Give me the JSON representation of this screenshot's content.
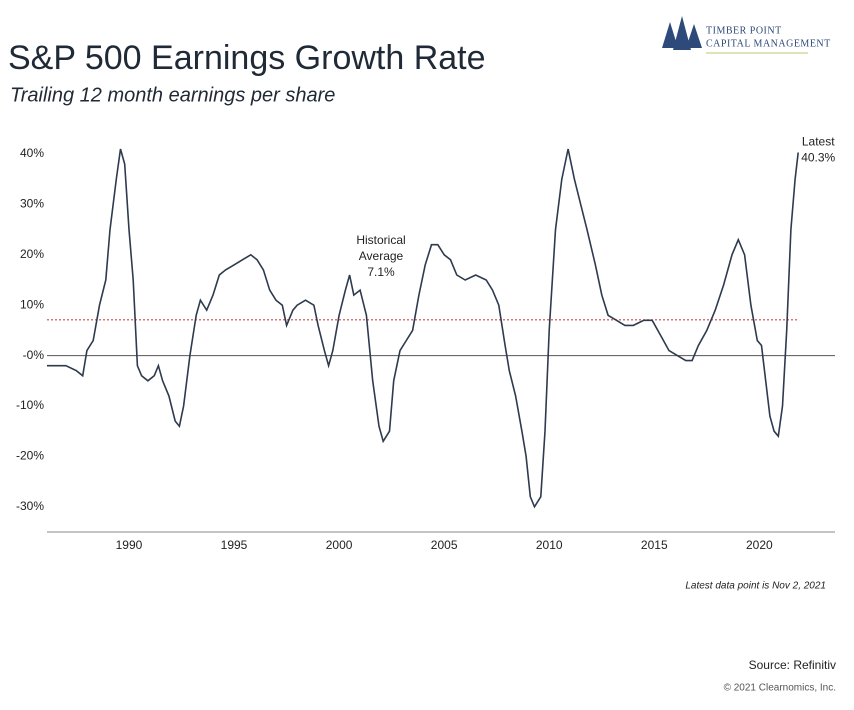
{
  "logo": {
    "line1": "Timber Point",
    "line2": "Capital Management"
  },
  "chart_data": {
    "type": "line",
    "title": "S&P 500 Earnings Growth Rate",
    "subtitle": "Trailing 12 month earnings per share",
    "note": "Latest data point is Nov 2, 2021",
    "source": "Source: Refinitiv",
    "copyright": "© 2021 Clearnomics, Inc.",
    "xlim": [
      1986.1,
      2023.6
    ],
    "xticks": [
      1990,
      1995,
      2000,
      2005,
      2010,
      2015,
      2020
    ],
    "ylim": [
      -35,
      45
    ],
    "yticks": [
      {
        "value": 40,
        "label": "40%"
      },
      {
        "value": 30,
        "label": "30%"
      },
      {
        "value": 20,
        "label": "20%"
      },
      {
        "value": 10,
        "label": "10%"
      },
      {
        "value": 0,
        "label": "-0%"
      },
      {
        "value": -10,
        "label": "-10%"
      },
      {
        "value": -20,
        "label": "-20%"
      },
      {
        "value": -30,
        "label": "-30%"
      }
    ],
    "grid": false,
    "zero_line": true,
    "average": {
      "lines": [
        "Historical",
        "Average"
      ],
      "value": 7.1,
      "value_label": "7.1%",
      "color": "#d04545"
    },
    "latest": {
      "label": "Latest",
      "value": 40.3,
      "value_label": "40.3%"
    },
    "series": [
      {
        "name": "S&P 500 Earnings Growth Rate",
        "color": "#2e3a4d",
        "x": [
          1986.1,
          1987.0,
          1987.5,
          1987.8,
          1988.0,
          1988.3,
          1988.6,
          1988.9,
          1989.1,
          1989.4,
          1989.6,
          1989.8,
          1990.0,
          1990.2,
          1990.4,
          1990.6,
          1990.9,
          1991.2,
          1991.4,
          1991.6,
          1991.9,
          1992.2,
          1992.4,
          1992.6,
          1992.9,
          1993.2,
          1993.4,
          1993.7,
          1994.0,
          1994.3,
          1994.6,
          1995.0,
          1995.4,
          1995.8,
          1996.1,
          1996.4,
          1996.7,
          1997.0,
          1997.3,
          1997.5,
          1997.8,
          1998.0,
          1998.4,
          1998.8,
          1999.0,
          1999.3,
          1999.5,
          1999.7,
          2000.0,
          2000.3,
          2000.5,
          2000.7,
          2001.0,
          2001.3,
          2001.6,
          2001.9,
          2002.1,
          2002.4,
          2002.6,
          2002.9,
          2003.2,
          2003.5,
          2003.8,
          2004.1,
          2004.4,
          2004.7,
          2005.0,
          2005.3,
          2005.6,
          2006.0,
          2006.5,
          2007.0,
          2007.3,
          2007.6,
          2007.9,
          2008.1,
          2008.4,
          2008.7,
          2008.9,
          2009.1,
          2009.3,
          2009.6,
          2009.8,
          2010.0,
          2010.3,
          2010.6,
          2010.9,
          2011.2,
          2011.5,
          2011.8,
          2012.2,
          2012.5,
          2012.8,
          2013.2,
          2013.6,
          2014.0,
          2014.5,
          2014.9,
          2015.3,
          2015.7,
          2016.1,
          2016.5,
          2016.8,
          2017.1,
          2017.5,
          2017.9,
          2018.3,
          2018.7,
          2019.0,
          2019.3,
          2019.6,
          2019.9,
          2020.1,
          2020.3,
          2020.5,
          2020.7,
          2020.9,
          2021.1,
          2021.3,
          2021.5,
          2021.7,
          2021.85
        ],
        "values": [
          -2,
          -2,
          -3,
          -4,
          1,
          3,
          10,
          15,
          25,
          35,
          41,
          38,
          25,
          15,
          -2,
          -4,
          -5,
          -4,
          -2,
          -5,
          -8,
          -13,
          -14,
          -10,
          0,
          8,
          11,
          9,
          12,
          16,
          17,
          18,
          19,
          20,
          19,
          17,
          13,
          11,
          10,
          6,
          9,
          10,
          11,
          10,
          6,
          1,
          -2,
          1,
          8,
          13,
          16,
          12,
          13,
          8,
          -5,
          -14,
          -17,
          -15,
          -5,
          1,
          3,
          5,
          12,
          18,
          22,
          22,
          20,
          19,
          16,
          15,
          16,
          15,
          13,
          10,
          2,
          -3,
          -8,
          -15,
          -20,
          -28,
          -30,
          -28,
          -15,
          5,
          25,
          35,
          41,
          35,
          30,
          25,
          18,
          12,
          8,
          7,
          6,
          6,
          7,
          7,
          4,
          1,
          0,
          -1,
          -1,
          2,
          5,
          9,
          14,
          20,
          23,
          20,
          10,
          3,
          2,
          -5,
          -12,
          -15,
          -16,
          -10,
          5,
          25,
          35,
          40.3
        ]
      }
    ]
  }
}
